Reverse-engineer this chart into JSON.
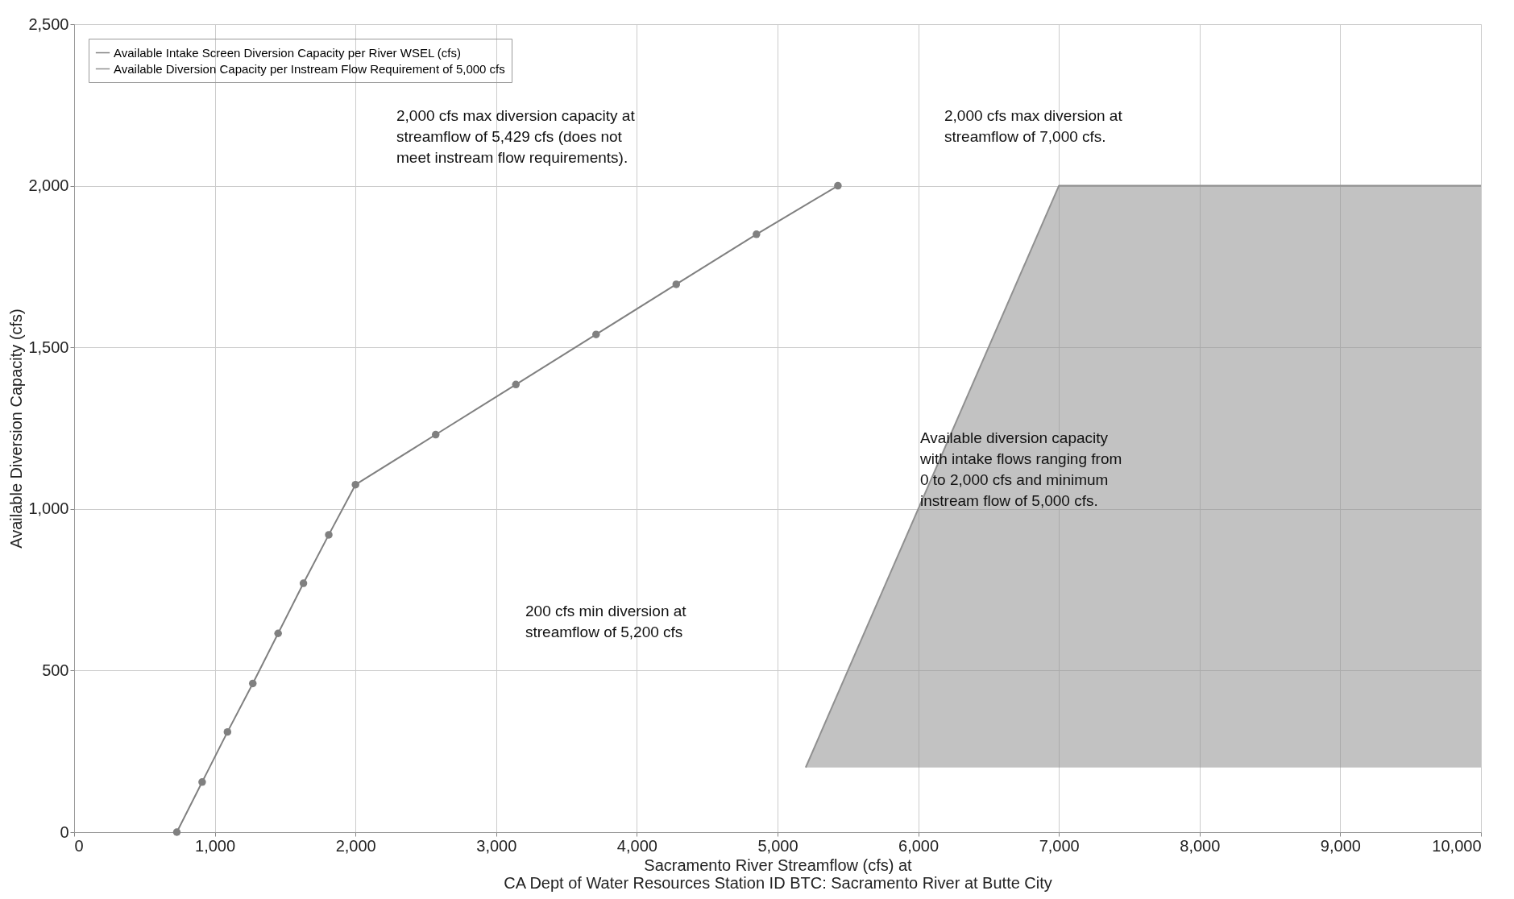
{
  "chart_data": {
    "type": "line",
    "xlabel": "Sacramento River Streamflow (cfs) at\nCA Dept of Water Resources Station ID BTC: Sacramento River at Butte City",
    "ylabel": "Available Diversion Capacity (cfs)",
    "xlim": [
      0,
      10000
    ],
    "xticks": [
      0,
      {
        "value": 1000,
        "label": "1,000"
      },
      {
        "value": 2000,
        "label": "2,000"
      },
      {
        "value": 3000,
        "label": "3,000"
      },
      {
        "value": 4000,
        "label": "4,000"
      },
      {
        "value": 5000,
        "label": "5,000"
      },
      {
        "value": 6000,
        "label": "6,000"
      },
      {
        "value": 7000,
        "label": "7,000"
      },
      {
        "value": 8000,
        "label": "8,000"
      },
      {
        "value": 9000,
        "label": "9,000"
      },
      {
        "value": 10000,
        "label": "10,000"
      }
    ],
    "ylim": [
      0,
      2500
    ],
    "yticks": [
      0,
      500,
      {
        "value": 1000,
        "label": "1,000"
      },
      {
        "value": 1500,
        "label": "1,500"
      },
      {
        "value": 2000,
        "label": "2,000"
      },
      {
        "value": 2500,
        "label": "2,500"
      }
    ],
    "grid": true,
    "legend": "top left",
    "series": [
      {
        "name": "Available Intake Screen Diversion Capacity per River WSEL (cfs)",
        "color": "#808080",
        "marker": "circle",
        "x": [
          730,
          910,
          1090,
          1270,
          1450,
          1630,
          1810,
          2000,
          2570,
          3140,
          3710,
          4280,
          4850,
          5429
        ],
        "values": [
          0,
          155,
          310,
          460,
          615,
          770,
          920,
          1075,
          1230,
          1385,
          1540,
          1695,
          1850,
          2000
        ]
      },
      {
        "name": "Available Diversion Capacity per Instream Flow Requirement of 5,000 cfs",
        "color": "#909090",
        "x": [
          5200,
          7000,
          10000
        ],
        "values": [
          200,
          2000,
          2000
        ],
        "lower": [
          200,
          200,
          200
        ],
        "upper": [
          200,
          2000,
          2000
        ]
      }
    ],
    "annotations": [
      "2,000 cfs max diversion capacity at\nstreamflow of 5,429 cfs (does not\nmeet instream flow requirements).",
      "2,000 cfs max diversion at\nstreamflow of 7,000 cfs.",
      "200 cfs min diversion at\nstreamflow of 5,200 cfs",
      "Available diversion capacity\nwith intake flows ranging from\n0 to 2,000 cfs and minimum\ninstream flow of 5,000 cfs."
    ]
  }
}
